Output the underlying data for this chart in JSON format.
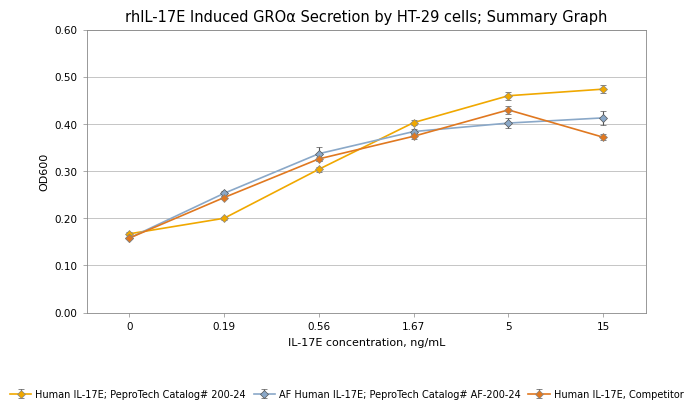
{
  "title": "rhIL-17E Induced GROα Secretion by HT-29 cells; Summary Graph",
  "xlabel": "IL-17E concentration, ng/mL",
  "ylabel": "OD600",
  "xlim_labels": [
    "0",
    "0.19",
    "0.56",
    "1.67",
    "5",
    "15"
  ],
  "x_positions": [
    0,
    1,
    2,
    3,
    4,
    5
  ],
  "ylim": [
    0.0,
    0.6
  ],
  "yticks": [
    0.0,
    0.1,
    0.2,
    0.3,
    0.4,
    0.5,
    0.6
  ],
  "series": [
    {
      "label": "Human IL-17E; PeproTech Catalog# 200-24",
      "color": "#F0A800",
      "marker_face": "#F0A800",
      "marker_edge": "#888888",
      "marker": "D",
      "markersize": 4,
      "values": [
        0.167,
        0.2,
        0.304,
        0.403,
        0.46,
        0.474
      ],
      "errors": [
        0.003,
        0.003,
        0.005,
        0.005,
        0.008,
        0.008
      ]
    },
    {
      "label": "AF Human IL-17E; PeproTech Catalog# AF-200-24",
      "color": "#8AA8C8",
      "marker_face": "#8AA8C8",
      "marker_edge": "#555555",
      "marker": "D",
      "markersize": 4,
      "values": [
        0.158,
        0.253,
        0.337,
        0.384,
        0.402,
        0.413
      ],
      "errors": [
        0.003,
        0.005,
        0.015,
        0.006,
        0.01,
        0.015
      ]
    },
    {
      "label": "Human IL-17E, Competitor",
      "color": "#E07820",
      "marker_face": "#E07820",
      "marker_edge": "#888888",
      "marker": "D",
      "markersize": 4,
      "values": [
        0.158,
        0.244,
        0.326,
        0.374,
        0.43,
        0.372
      ],
      "errors": [
        0.003,
        0.003,
        0.005,
        0.005,
        0.008,
        0.006
      ]
    }
  ],
  "legend_fontsize": 7,
  "axis_label_fontsize": 8,
  "title_fontsize": 10.5,
  "tick_fontsize": 7.5,
  "background_color": "#FFFFFF",
  "plot_bg_color": "#FFFFFF",
  "grid_color": "#BBBBBB",
  "spine_color": "#888888",
  "linewidth": 1.2
}
